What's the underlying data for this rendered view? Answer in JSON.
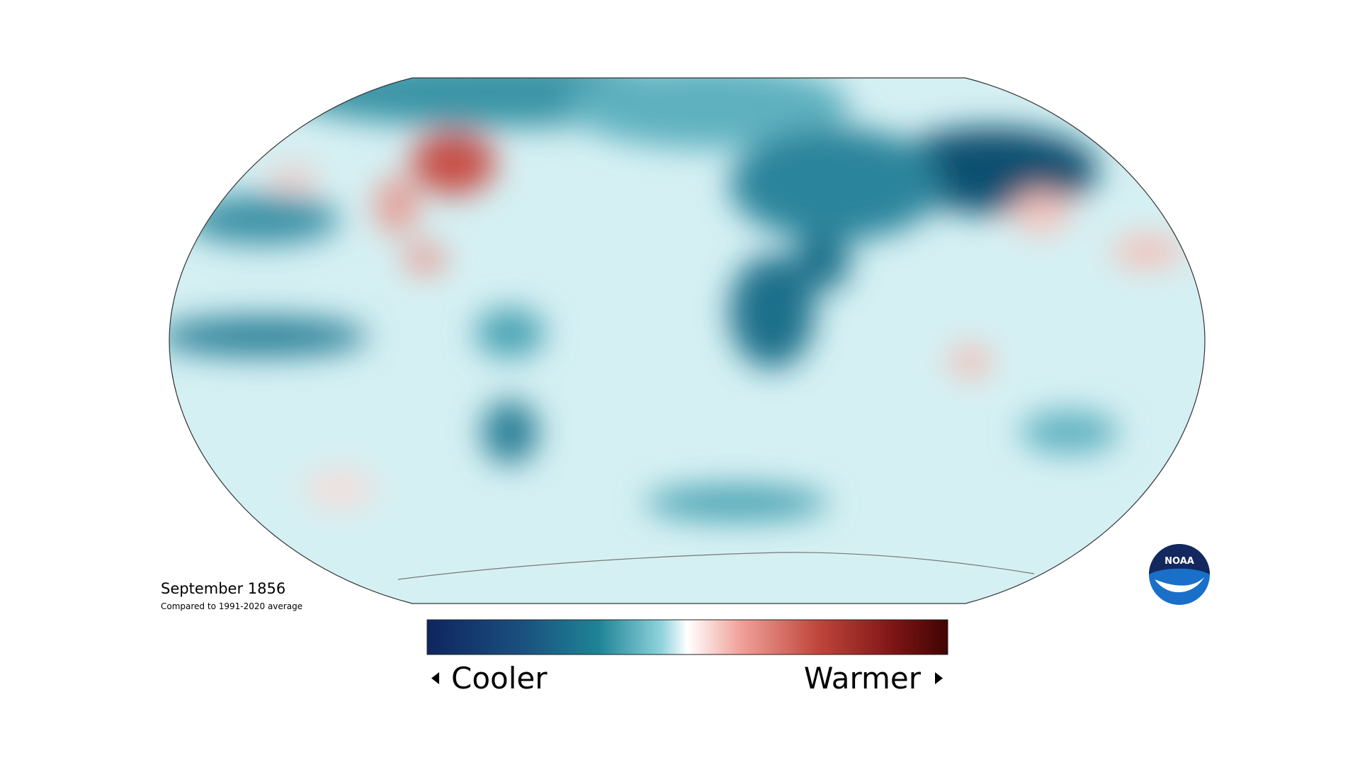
{
  "map": {
    "title": "September 1856",
    "subtitle": "Compared to 1991-2020 average"
  },
  "legend": {
    "low_label": "Cooler",
    "high_label": "Warmer"
  },
  "logo": {
    "text": "NOAA"
  }
}
